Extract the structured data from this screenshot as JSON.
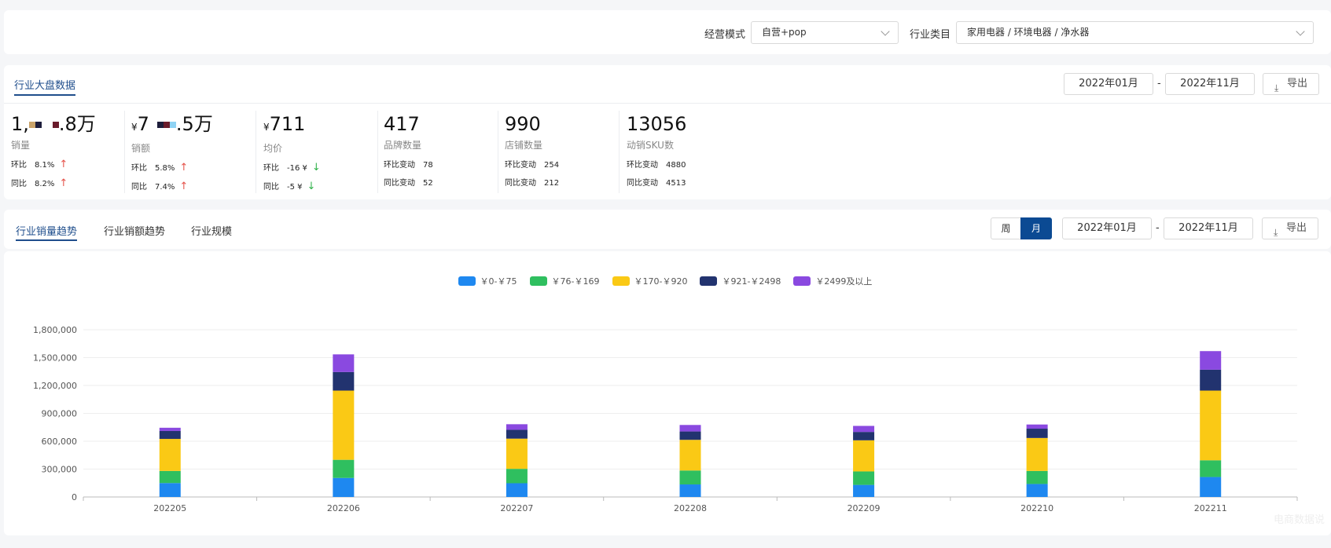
{
  "filters": {
    "mode_label": "经营模式",
    "mode_value": "自营+pop",
    "category_label": "行业类目",
    "category_value": "家用电器 / 环境电器 / 净水器"
  },
  "overview": {
    "tab": "行业大盘数据",
    "date_start": "2022年01月",
    "date_sep": "-",
    "date_end": "2022年11月",
    "export_label": "导出",
    "metrics": [
      {
        "value_prefix": "1,",
        "value_suffix": ".8万",
        "label": "销量",
        "row1_label": "环比",
        "row1_value": "8.1%",
        "row1_dir": "up",
        "row2_label": "同比",
        "row2_value": "8.2%",
        "row2_dir": "up"
      },
      {
        "yen": "¥",
        "value_prefix": "7",
        "value_suffix": ".5万",
        "label": "销额",
        "row1_label": "环比",
        "row1_value": "5.8%",
        "row1_dir": "up",
        "row2_label": "同比",
        "row2_value": "7.4%",
        "row2_dir": "up"
      },
      {
        "yen": "¥",
        "value": "711",
        "label": "均价",
        "row1_label": "环比",
        "row1_value": "-16 ¥",
        "row1_dir": "down",
        "row2_label": "同比",
        "row2_value": "-5 ¥",
        "row2_dir": "down"
      },
      {
        "value": "417",
        "label": "品牌数量",
        "row1_label": "环比变动",
        "row1_value": "78",
        "row2_label": "同比变动",
        "row2_value": "52"
      },
      {
        "value": "990",
        "label": "店铺数量",
        "row1_label": "环比变动",
        "row1_value": "254",
        "row2_label": "同比变动",
        "row2_value": "212"
      },
      {
        "value": "13056",
        "label": "动销SKU数",
        "row1_label": "环比变动",
        "row1_value": "4880",
        "row2_label": "同比变动",
        "row2_value": "4513"
      }
    ],
    "colors": {
      "up": "#e5534b",
      "down": "#30b24a"
    }
  },
  "trend": {
    "tabs": [
      "行业销量趋势",
      "行业销额趋势",
      "行业规模"
    ],
    "granularity": [
      "周",
      "月"
    ],
    "granularity_selected": "月",
    "date_start": "2022年01月",
    "date_sep": "-",
    "date_end": "2022年11月",
    "export_label": "导出"
  },
  "chart_data": {
    "type": "bar",
    "stacked": true,
    "categories": [
      "202205",
      "202206",
      "202207",
      "202208",
      "202209",
      "202210",
      "202211"
    ],
    "series": [
      {
        "name": "￥0-￥75",
        "color": "#1e88f0",
        "values": [
          150000,
          205000,
          148000,
          135000,
          130000,
          140000,
          215000
        ]
      },
      {
        "name": "￥76-￥169",
        "color": "#2fbf5f",
        "values": [
          130000,
          195000,
          155000,
          150000,
          145000,
          140000,
          180000
        ]
      },
      {
        "name": "￥170-￥920",
        "color": "#fac915",
        "values": [
          345000,
          745000,
          325000,
          330000,
          335000,
          355000,
          750000
        ]
      },
      {
        "name": "￥921-￥2498",
        "color": "#22336f",
        "values": [
          85000,
          200000,
          95000,
          90000,
          90000,
          100000,
          225000
        ]
      },
      {
        "name": "￥2499及以上",
        "color": "#8a49e0",
        "values": [
          35000,
          190000,
          60000,
          70000,
          65000,
          45000,
          200000
        ]
      }
    ],
    "y_ticks": [
      "0",
      "300,000",
      "600,000",
      "900,000",
      "1,200,000",
      "1,500,000",
      "1,800,000"
    ],
    "ylim": [
      0,
      1800000
    ],
    "grid": true,
    "legend_position": "top-center"
  },
  "watermark": "电商数据说"
}
